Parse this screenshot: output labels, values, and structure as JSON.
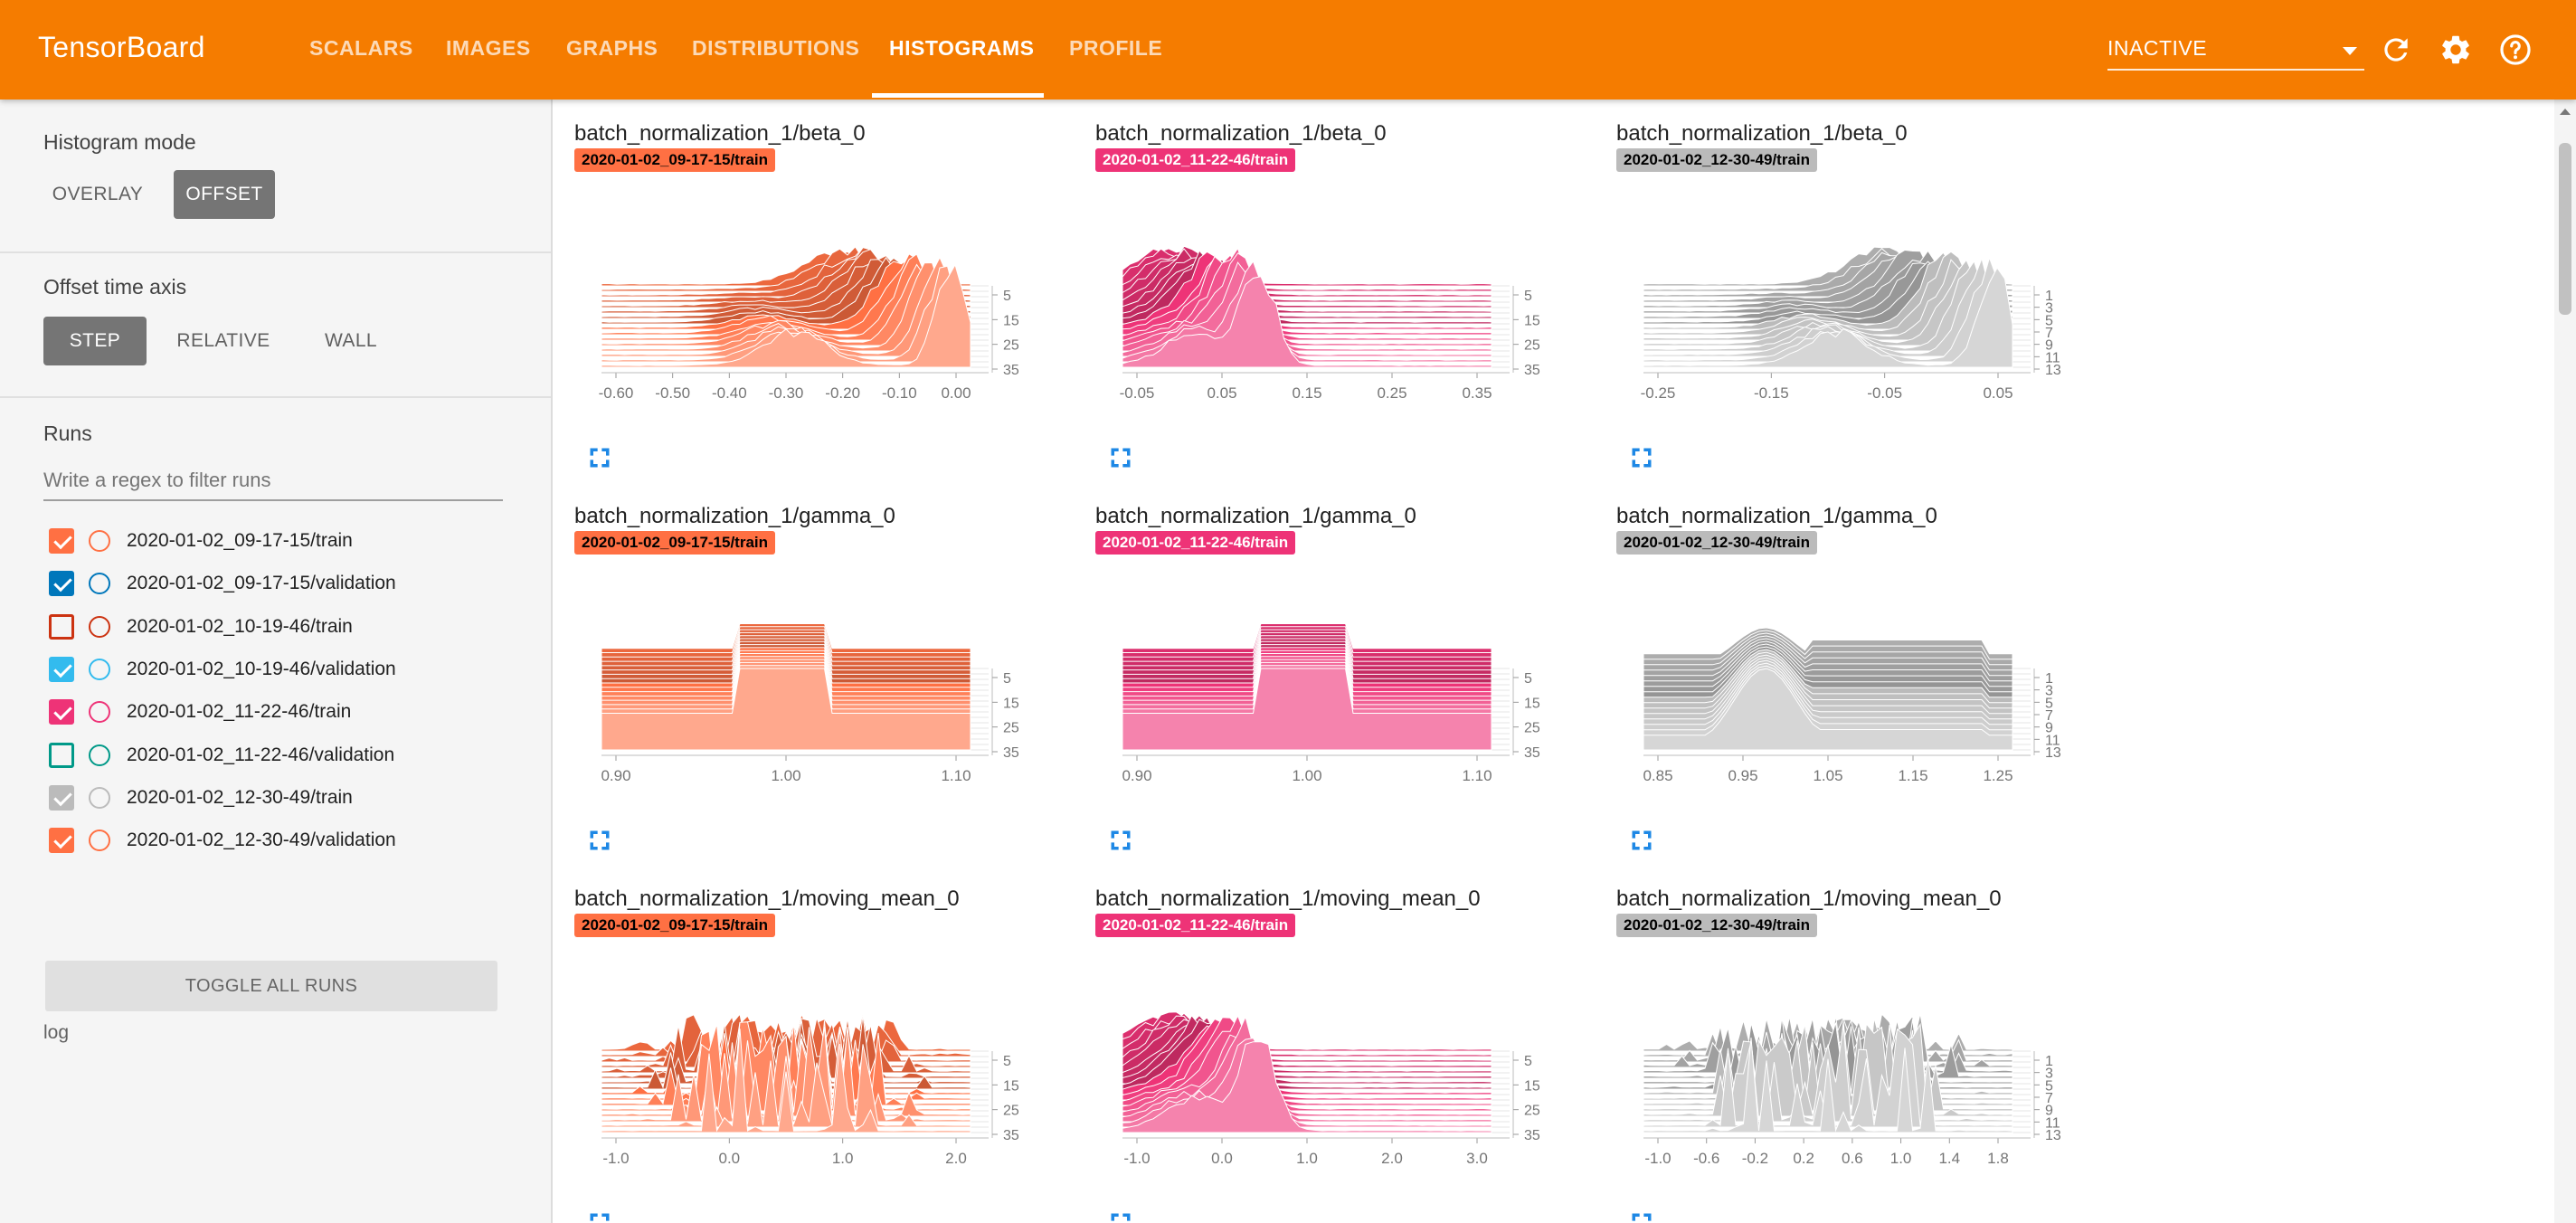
{
  "header": {
    "brand": "TensorBoard",
    "tabs": [
      {
        "label": "SCALARS"
      },
      {
        "label": "IMAGES"
      },
      {
        "label": "GRAPHS"
      },
      {
        "label": "DISTRIBUTIONS"
      },
      {
        "label": "HISTOGRAMS"
      },
      {
        "label": "PROFILE"
      }
    ],
    "active_tab": "HISTOGRAMS",
    "run_select_value": "INACTIVE",
    "icons": [
      "refresh-icon",
      "gear-icon",
      "help-icon"
    ],
    "accent_color": "#f57c00"
  },
  "sidebar": {
    "histogram_mode": {
      "title": "Histogram mode",
      "options": [
        {
          "label": "OVERLAY"
        },
        {
          "label": "OFFSET"
        }
      ],
      "selected": "OFFSET"
    },
    "offset_time_axis": {
      "title": "Offset time axis",
      "options": [
        {
          "label": "STEP"
        },
        {
          "label": "RELATIVE"
        },
        {
          "label": "WALL"
        }
      ],
      "selected": "STEP"
    },
    "runs": {
      "title": "Runs",
      "filter_placeholder": "Write a regex to filter runs",
      "items": [
        {
          "label": "2020-01-02_09-17-15/train",
          "checked": true,
          "color": "#ff7043"
        },
        {
          "label": "2020-01-02_09-17-15/validation",
          "checked": true,
          "color": "#0077bb"
        },
        {
          "label": "2020-01-02_10-19-46/train",
          "checked": false,
          "color": "#cc3311"
        },
        {
          "label": "2020-01-02_10-19-46/validation",
          "checked": true,
          "color": "#33bbee"
        },
        {
          "label": "2020-01-02_11-22-46/train",
          "checked": true,
          "color": "#ee3377"
        },
        {
          "label": "2020-01-02_11-22-46/validation",
          "checked": false,
          "color": "#009988"
        },
        {
          "label": "2020-01-02_12-30-49/train",
          "checked": true,
          "color": "#bbbbbb"
        },
        {
          "label": "2020-01-02_12-30-49/validation",
          "checked": true,
          "color": "#ff7043"
        }
      ],
      "toggle_all_label": "TOGGLE ALL RUNS",
      "logdir": "log"
    }
  },
  "main": {
    "runs": [
      {
        "tag": "2020-01-02_09-17-15/train",
        "tag_color": "#ff7043",
        "tag_text_color": "#000000",
        "color": "#ff7043"
      },
      {
        "tag": "2020-01-02_11-22-46/train",
        "tag_color": "#ee3377",
        "tag_text_color": "#ffffff",
        "color": "#ee3377"
      },
      {
        "tag": "2020-01-02_12-30-49/train",
        "tag_color": "#bbbbbb",
        "tag_text_color": "#000000",
        "color": "#bbbbbb"
      }
    ],
    "cards": [
      {
        "title": "batch_normalization_1/beta_0",
        "run": "2020-01-02_09-17-15/train"
      },
      {
        "title": "batch_normalization_1/beta_0",
        "run": "2020-01-02_11-22-46/train"
      },
      {
        "title": "batch_normalization_1/beta_0",
        "run": "2020-01-02_12-30-49/train"
      },
      {
        "title": "batch_normalization_1/gamma_0",
        "run": "2020-01-02_09-17-15/train"
      },
      {
        "title": "batch_normalization_1/gamma_0",
        "run": "2020-01-02_11-22-46/train"
      },
      {
        "title": "batch_normalization_1/gamma_0",
        "run": "2020-01-02_12-30-49/train"
      },
      {
        "title": "batch_normalization_1/moving_mean_0",
        "run": "2020-01-02_09-17-15/train"
      },
      {
        "title": "batch_normalization_1/moving_mean_0",
        "run": "2020-01-02_11-22-46/train"
      },
      {
        "title": "batch_normalization_1/moving_mean_0",
        "run": "2020-01-02_12-30-49/train"
      }
    ]
  },
  "chart_data": [
    {
      "type": "area",
      "title": "batch_normalization_1/beta_0",
      "run": "2020-01-02_09-17-15/train",
      "mode": "offset",
      "shape": "spiky-right",
      "x_ticks": [
        "-0.60",
        "-0.50",
        "-0.40",
        "-0.30",
        "-0.20",
        "-0.10",
        "0.00"
      ],
      "y_ticks": [
        "5",
        "15",
        "25",
        "35"
      ],
      "xlim": [
        -0.65,
        0.04
      ],
      "steps": [
        0,
        40
      ]
    },
    {
      "type": "area",
      "title": "batch_normalization_1/beta_0",
      "run": "2020-01-02_11-22-46/train",
      "mode": "offset",
      "shape": "spiky-left",
      "x_ticks": [
        "-0.05",
        "0.05",
        "0.15",
        "0.25",
        "0.35"
      ],
      "y_ticks": [
        "5",
        "15",
        "25",
        "35"
      ],
      "xlim": [
        -0.11,
        0.35
      ],
      "steps": [
        0,
        40
      ]
    },
    {
      "type": "area",
      "title": "batch_normalization_1/beta_0",
      "run": "2020-01-02_12-30-49/train",
      "mode": "offset",
      "shape": "spiky-right",
      "x_ticks": [
        "-0.25",
        "-0.15",
        "-0.05",
        "0.05"
      ],
      "y_ticks": [
        "1",
        "3",
        "5",
        "7",
        "9",
        "11",
        "13"
      ],
      "xlim": [
        -0.31,
        0.09
      ],
      "steps": [
        0,
        13
      ]
    },
    {
      "type": "area",
      "title": "batch_normalization_1/gamma_0",
      "run": "2020-01-02_09-17-15/train",
      "mode": "offset",
      "shape": "step",
      "x_ticks": [
        "0.90",
        "1.00",
        "1.10"
      ],
      "y_ticks": [
        "5",
        "15",
        "25",
        "35"
      ],
      "xlim": [
        0.84,
        1.15
      ],
      "steps": [
        0,
        40
      ]
    },
    {
      "type": "area",
      "title": "batch_normalization_1/gamma_0",
      "run": "2020-01-02_11-22-46/train",
      "mode": "offset",
      "shape": "step",
      "x_ticks": [
        "0.90",
        "1.00",
        "1.10"
      ],
      "y_ticks": [
        "5",
        "15",
        "25",
        "35"
      ],
      "xlim": [
        0.84,
        1.15
      ],
      "steps": [
        0,
        40
      ]
    },
    {
      "type": "area",
      "title": "batch_normalization_1/gamma_0",
      "run": "2020-01-02_12-30-49/train",
      "mode": "offset",
      "shape": "step-peak",
      "x_ticks": [
        "0.85",
        "0.95",
        "1.05",
        "1.15",
        "1.25"
      ],
      "y_ticks": [
        "1",
        "3",
        "5",
        "7",
        "9",
        "11",
        "13"
      ],
      "xlim": [
        0.82,
        1.27
      ],
      "steps": [
        0,
        13
      ]
    },
    {
      "type": "area",
      "title": "batch_normalization_1/moving_mean_0",
      "run": "2020-01-02_09-17-15/train",
      "mode": "offset",
      "shape": "spiky-even",
      "x_ticks": [
        "-1.0",
        "0.0",
        "1.0",
        "2.0"
      ],
      "y_ticks": [
        "5",
        "15",
        "25",
        "35"
      ],
      "xlim": [
        -1.5,
        2.0
      ],
      "steps": [
        0,
        40
      ]
    },
    {
      "type": "area",
      "title": "batch_normalization_1/moving_mean_0",
      "run": "2020-01-02_11-22-46/train",
      "mode": "offset",
      "shape": "spiky-left",
      "x_ticks": [
        "-1.0",
        "0.0",
        "1.0",
        "2.0",
        "3.0"
      ],
      "y_ticks": [
        "5",
        "15",
        "25",
        "35"
      ],
      "xlim": [
        -1.5,
        3.3
      ],
      "steps": [
        0,
        40
      ]
    },
    {
      "type": "area",
      "title": "batch_normalization_1/moving_mean_0",
      "run": "2020-01-02_12-30-49/train",
      "mode": "offset",
      "shape": "spiky-even",
      "x_ticks": [
        "-1.0",
        "-0.6",
        "-0.2",
        "0.2",
        "0.6",
        "1.0",
        "1.4",
        "1.8"
      ],
      "y_ticks": [
        "1",
        "3",
        "5",
        "7",
        "9",
        "11",
        "13"
      ],
      "xlim": [
        -1.2,
        1.85
      ],
      "steps": [
        0,
        13
      ]
    }
  ]
}
